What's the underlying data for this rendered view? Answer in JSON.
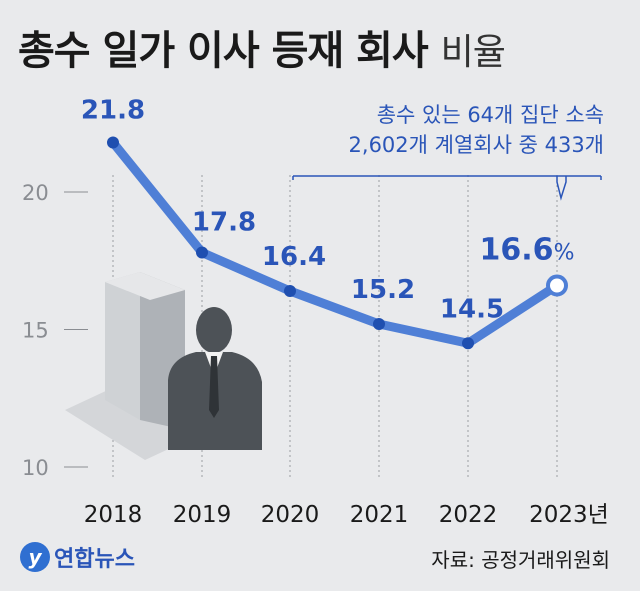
{
  "title": {
    "main": "총수 일가 이사 등재 회사",
    "suffix": "비율"
  },
  "annotation": {
    "line1": "총수 있는 64개 집단 소속",
    "line2": "2,602개 계열회사 중 433개"
  },
  "source": "자료: 공정거래위원회",
  "logo": {
    "badge": "y",
    "name": "연합뉴스"
  },
  "colors": {
    "line": "#4f7fd6",
    "label": "#2a55b8",
    "marker": "#1f4fb0",
    "background": "#e9eaec"
  },
  "chart_data": {
    "type": "line",
    "x": [
      "2018",
      "2019",
      "2020",
      "2021",
      "2022",
      "2023년"
    ],
    "values": [
      21.8,
      17.8,
      16.4,
      15.2,
      14.5,
      16.6
    ],
    "labels": [
      "21.8",
      "17.8",
      "16.4",
      "15.2",
      "14.5",
      "16.6"
    ],
    "last_label_unit": "%",
    "yticks": [
      "10",
      "15",
      "20"
    ],
    "ylim": [
      10,
      23
    ],
    "grid": "vertical dotted lines at each year"
  }
}
